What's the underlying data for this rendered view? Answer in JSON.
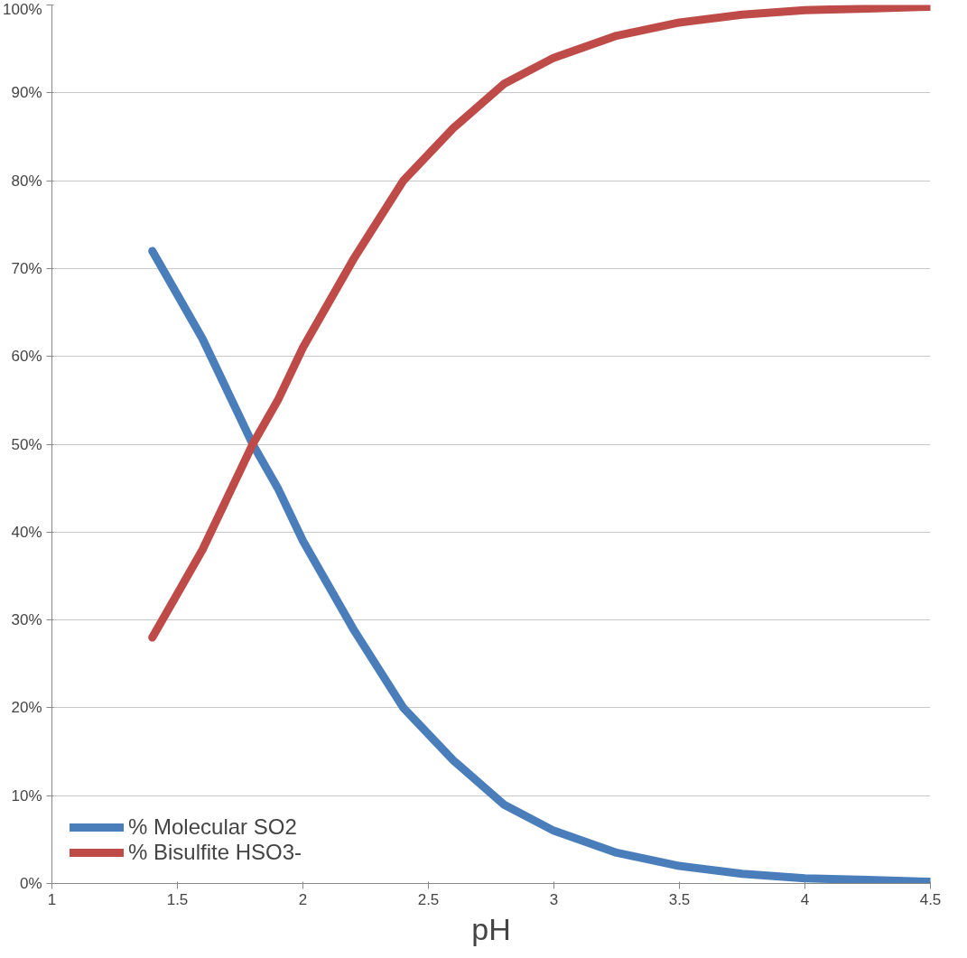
{
  "chart_data": {
    "type": "line",
    "xlabel": "pH",
    "x": [
      1.4,
      1.5,
      1.6,
      1.7,
      1.8,
      1.9,
      2.0,
      2.2,
      2.4,
      2.6,
      2.8,
      3.0,
      3.25,
      3.5,
      3.75,
      4.0,
      4.25,
      4.5
    ],
    "series": [
      {
        "name": "% Molecular SO2",
        "color": "#4a7ebb",
        "values": [
          72,
          67,
          62,
          56,
          50,
          45,
          39,
          29,
          20,
          14,
          9,
          6,
          3.5,
          2,
          1.1,
          0.6,
          0.4,
          0.2
        ]
      },
      {
        "name": "% Bisulfite HSO3-",
        "color": "#be4b48",
        "values": [
          28,
          33,
          38,
          44,
          50,
          55,
          61,
          71,
          80,
          86,
          91,
          94,
          96.5,
          98,
          98.9,
          99.4,
          99.6,
          99.8
        ]
      }
    ],
    "xlim": [
      1,
      4.5
    ],
    "xticks": [
      1,
      1.5,
      2,
      2.5,
      3,
      3.5,
      4,
      4.5
    ],
    "ylim": [
      0,
      100
    ],
    "yticks": [
      {
        "value": 0,
        "label": "0%"
      },
      {
        "value": 10,
        "label": "10%"
      },
      {
        "value": 20,
        "label": "20%"
      },
      {
        "value": 30,
        "label": "30%"
      },
      {
        "value": 40,
        "label": "40%"
      },
      {
        "value": 50,
        "label": "50%"
      },
      {
        "value": 60,
        "label": "60%"
      },
      {
        "value": 70,
        "label": "70%"
      },
      {
        "value": 80,
        "label": "80%"
      },
      {
        "value": 90,
        "label": "90%"
      },
      {
        "value": 100,
        "label": "100%"
      }
    ],
    "grid": "y",
    "legend": "bottom left",
    "marker": "none",
    "line_style": "solid"
  }
}
